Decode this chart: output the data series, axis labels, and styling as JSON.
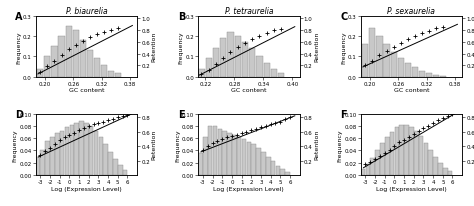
{
  "panels": [
    {
      "label": "A",
      "title": "P. biaurelia",
      "xlabel": "GC content",
      "ylabel_left": "Frequency",
      "ylabel_right": "Retention",
      "xlim": [
        0.18,
        0.395
      ],
      "ylim_left": [
        0,
        0.3
      ],
      "ylim_right": [
        0.0,
        1.05
      ],
      "xticks": [
        0.2,
        0.26,
        0.32,
        0.38
      ],
      "yticks_left": [
        0.0,
        0.1,
        0.2,
        0.3
      ],
      "yticks_right": [
        0.2,
        0.4,
        0.6,
        0.8,
        1.0
      ],
      "hist_x": [
        0.19,
        0.205,
        0.22,
        0.235,
        0.25,
        0.265,
        0.28,
        0.295,
        0.31,
        0.325,
        0.34,
        0.355
      ],
      "hist_h": [
        0.04,
        0.1,
        0.15,
        0.2,
        0.25,
        0.23,
        0.18,
        0.13,
        0.09,
        0.06,
        0.03,
        0.02
      ],
      "scatter_x": [
        0.19,
        0.205,
        0.22,
        0.235,
        0.25,
        0.265,
        0.28,
        0.295,
        0.31,
        0.325,
        0.34,
        0.355
      ],
      "scatter_y": [
        0.08,
        0.18,
        0.28,
        0.38,
        0.48,
        0.55,
        0.62,
        0.68,
        0.73,
        0.77,
        0.8,
        0.83
      ],
      "line_x": [
        0.185,
        0.385
      ],
      "line_y": [
        0.05,
        0.88
      ],
      "bar_width": 0.013
    },
    {
      "label": "B",
      "title": "P. tetraurelia",
      "xlabel": "GC content",
      "ylabel_left": "Frequency",
      "ylabel_right": "Retention",
      "xlim": [
        0.205,
        0.415
      ],
      "ylim_left": [
        0,
        0.3
      ],
      "ylim_right": [
        0.0,
        1.05
      ],
      "xticks": [
        0.22,
        0.28,
        0.34,
        0.4
      ],
      "yticks_left": [
        0.0,
        0.1,
        0.2,
        0.3
      ],
      "yticks_right": [
        0.2,
        0.4,
        0.6,
        0.8,
        1.0
      ],
      "hist_x": [
        0.212,
        0.227,
        0.242,
        0.257,
        0.272,
        0.287,
        0.302,
        0.317,
        0.332,
        0.347,
        0.362,
        0.377
      ],
      "hist_h": [
        0.04,
        0.09,
        0.14,
        0.19,
        0.22,
        0.2,
        0.17,
        0.14,
        0.1,
        0.07,
        0.04,
        0.02
      ],
      "scatter_x": [
        0.212,
        0.227,
        0.242,
        0.257,
        0.272,
        0.287,
        0.302,
        0.317,
        0.332,
        0.347,
        0.362,
        0.377
      ],
      "scatter_y": [
        0.05,
        0.12,
        0.22,
        0.32,
        0.43,
        0.52,
        0.58,
        0.64,
        0.7,
        0.75,
        0.8,
        0.82
      ],
      "line_x": [
        0.208,
        0.405
      ],
      "line_y": [
        0.03,
        0.86
      ],
      "bar_width": 0.013
    },
    {
      "label": "C",
      "title": "P. sexaurelia",
      "xlabel": "GC content",
      "ylabel_left": "Frequency",
      "ylabel_right": "Retention",
      "xlim": [
        0.18,
        0.395
      ],
      "ylim_left": [
        0,
        0.3
      ],
      "ylim_right": [
        0.0,
        1.05
      ],
      "xticks": [
        0.2,
        0.26,
        0.32,
        0.38
      ],
      "yticks_left": [
        0.0,
        0.1,
        0.2,
        0.3
      ],
      "yticks_right": [
        0.2,
        0.4,
        0.6,
        0.8,
        1.0
      ],
      "hist_x": [
        0.19,
        0.205,
        0.22,
        0.235,
        0.25,
        0.265,
        0.28,
        0.295,
        0.31,
        0.325,
        0.34,
        0.355
      ],
      "hist_h": [
        0.16,
        0.24,
        0.2,
        0.16,
        0.12,
        0.09,
        0.07,
        0.05,
        0.03,
        0.02,
        0.01,
        0.005
      ],
      "scatter_x": [
        0.19,
        0.205,
        0.22,
        0.235,
        0.25,
        0.265,
        0.28,
        0.295,
        0.31,
        0.325,
        0.34,
        0.355
      ],
      "scatter_y": [
        0.2,
        0.28,
        0.37,
        0.45,
        0.52,
        0.58,
        0.64,
        0.7,
        0.75,
        0.79,
        0.83,
        0.86
      ],
      "line_x": [
        0.185,
        0.385
      ],
      "line_y": [
        0.17,
        0.9
      ],
      "bar_width": 0.013
    },
    {
      "label": "D",
      "title": "",
      "xlabel": "Log (Expression Level)",
      "ylabel_left": "Frequency",
      "ylabel_right": "Retention",
      "xlim": [
        -3.5,
        7.0
      ],
      "ylim_left": [
        0,
        0.1
      ],
      "ylim_right": [
        0.0,
        0.85
      ],
      "xticks": [
        -3,
        -2,
        -1,
        0,
        1,
        2,
        3,
        4,
        5,
        6
      ],
      "yticks_left": [
        0.0,
        0.02,
        0.04,
        0.06,
        0.08,
        0.1
      ],
      "yticks_right": [
        0.2,
        0.4,
        0.6,
        0.8
      ],
      "hist_x": [
        -3.25,
        -2.75,
        -2.25,
        -1.75,
        -1.25,
        -0.75,
        -0.25,
        0.25,
        0.75,
        1.25,
        1.75,
        2.25,
        2.75,
        3.25,
        3.75,
        4.25,
        4.75,
        5.25,
        5.75
      ],
      "hist_h": [
        0.03,
        0.04,
        0.055,
        0.062,
        0.068,
        0.072,
        0.078,
        0.082,
        0.085,
        0.088,
        0.085,
        0.08,
        0.072,
        0.062,
        0.05,
        0.038,
        0.026,
        0.016,
        0.008
      ],
      "scatter_x": [
        -3.0,
        -2.5,
        -2.0,
        -1.5,
        -1.0,
        -0.5,
        0.0,
        0.5,
        1.0,
        1.5,
        2.0,
        2.5,
        3.0,
        3.5,
        4.0,
        4.5,
        5.0,
        5.5,
        6.0
      ],
      "scatter_y": [
        0.27,
        0.33,
        0.38,
        0.43,
        0.48,
        0.52,
        0.55,
        0.58,
        0.62,
        0.65,
        0.68,
        0.7,
        0.72,
        0.74,
        0.76,
        0.78,
        0.8,
        0.82,
        0.83
      ],
      "line_x": [
        -3.2,
        6.5
      ],
      "line_y": [
        0.25,
        0.85
      ],
      "bar_width": 0.48
    },
    {
      "label": "E",
      "title": "",
      "xlabel": "Log (Expression Level)",
      "ylabel_left": "Frequency",
      "ylabel_right": "Retention",
      "xlim": [
        -3.5,
        7.0
      ],
      "ylim_left": [
        0,
        0.1
      ],
      "ylim_right": [
        0.0,
        0.85
      ],
      "xticks": [
        -3,
        -2,
        -1,
        0,
        1,
        2,
        3,
        4,
        5,
        6
      ],
      "yticks_left": [
        0.0,
        0.02,
        0.04,
        0.06,
        0.08,
        0.1
      ],
      "yticks_right": [
        0.2,
        0.4,
        0.6,
        0.8
      ],
      "hist_x": [
        -3.25,
        -2.75,
        -2.25,
        -1.75,
        -1.25,
        -0.75,
        -0.25,
        0.25,
        0.75,
        1.25,
        1.75,
        2.25,
        2.75,
        3.25,
        3.75,
        4.25,
        4.75,
        5.25,
        5.75
      ],
      "hist_h": [
        0.035,
        0.062,
        0.08,
        0.08,
        0.075,
        0.072,
        0.068,
        0.065,
        0.062,
        0.058,
        0.054,
        0.05,
        0.044,
        0.038,
        0.03,
        0.022,
        0.015,
        0.01,
        0.005
      ],
      "scatter_x": [
        -3.0,
        -2.5,
        -2.0,
        -1.5,
        -1.0,
        -0.5,
        0.0,
        0.5,
        1.0,
        1.5,
        2.0,
        2.5,
        3.0,
        3.5,
        4.0,
        4.5,
        5.0,
        5.5,
        6.0
      ],
      "scatter_y": [
        0.35,
        0.4,
        0.44,
        0.47,
        0.5,
        0.52,
        0.54,
        0.56,
        0.58,
        0.6,
        0.62,
        0.64,
        0.66,
        0.68,
        0.7,
        0.72,
        0.74,
        0.77,
        0.8
      ],
      "line_x": [
        -3.2,
        6.5
      ],
      "line_y": [
        0.32,
        0.82
      ],
      "bar_width": 0.48
    },
    {
      "label": "F",
      "title": "",
      "xlabel": "Log (Expression Level)",
      "ylabel_left": "Frequency",
      "ylabel_right": "Retention",
      "xlim": [
        -3.5,
        7.0
      ],
      "ylim_left": [
        0,
        0.1
      ],
      "ylim_right": [
        0.0,
        0.85
      ],
      "xticks": [
        -3,
        -2,
        -1,
        0,
        1,
        2,
        3,
        4,
        5,
        6
      ],
      "yticks_left": [
        0.0,
        0.02,
        0.04,
        0.06,
        0.08,
        0.1
      ],
      "yticks_right": [
        0.2,
        0.4,
        0.6,
        0.8
      ],
      "hist_x": [
        -3.25,
        -2.75,
        -2.25,
        -1.75,
        -1.25,
        -0.75,
        -0.25,
        0.25,
        0.75,
        1.25,
        1.75,
        2.25,
        2.75,
        3.25,
        3.75,
        4.25,
        4.75,
        5.25,
        5.75
      ],
      "hist_h": [
        0.01,
        0.018,
        0.028,
        0.04,
        0.052,
        0.062,
        0.07,
        0.078,
        0.082,
        0.082,
        0.078,
        0.072,
        0.063,
        0.052,
        0.04,
        0.03,
        0.02,
        0.012,
        0.006
      ],
      "scatter_x": [
        -3.0,
        -2.5,
        -2.0,
        -1.5,
        -1.0,
        -0.5,
        0.0,
        0.5,
        1.0,
        1.5,
        2.0,
        2.5,
        3.0,
        3.5,
        4.0,
        4.5,
        5.0,
        5.5,
        6.0
      ],
      "scatter_y": [
        0.15,
        0.18,
        0.22,
        0.26,
        0.3,
        0.35,
        0.4,
        0.45,
        0.49,
        0.53,
        0.57,
        0.61,
        0.65,
        0.68,
        0.72,
        0.76,
        0.79,
        0.82,
        0.84
      ],
      "line_x": [
        -3.2,
        6.5
      ],
      "line_y": [
        0.1,
        0.87
      ],
      "bar_width": 0.48
    }
  ],
  "bar_color": "#c8c8c8",
  "bar_edge_color": "#888888",
  "line_color": "#000000",
  "fig_width": 4.74,
  "fig_height": 2.07,
  "dpi": 100
}
